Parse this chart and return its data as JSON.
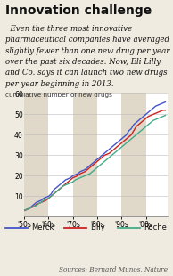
{
  "title": "Innovation challenge",
  "body_lines": [
    "  Even the three most innovative",
    "pharmaceutical companies have averaged",
    "slightly fewer than one new drug per year",
    "over the past six decades. Now, Eli Lilly",
    "and Co. says it can launch two new drugs",
    "per year beginning in 2013."
  ],
  "ylabel": "cumulative number of new drugs",
  "source": "Sources: Bernard Munos, Nature",
  "ylim": [
    0,
    60
  ],
  "yticks": [
    10,
    20,
    30,
    40,
    50,
    60
  ],
  "xtick_labels": [
    "'50s",
    "'60s",
    "'70s",
    "'80s",
    "'90s",
    "'00s"
  ],
  "bg_color": "#f0ebe0",
  "plot_bg": "#ffffff",
  "stripe_color": "#e0d8c8",
  "years": [
    1950,
    1951,
    1952,
    1953,
    1954,
    1955,
    1956,
    1957,
    1958,
    1959,
    1960,
    1961,
    1962,
    1963,
    1964,
    1965,
    1966,
    1967,
    1968,
    1969,
    1970,
    1971,
    1972,
    1973,
    1974,
    1975,
    1976,
    1977,
    1978,
    1979,
    1980,
    1981,
    1982,
    1983,
    1984,
    1985,
    1986,
    1987,
    1988,
    1989,
    1990,
    1991,
    1992,
    1993,
    1994,
    1995,
    1996,
    1997,
    1998,
    1999,
    2000,
    2001,
    2002,
    2003,
    2004,
    2005,
    2006,
    2007,
    2008
  ],
  "merck": [
    3,
    3.5,
    4,
    5,
    6,
    7,
    7.5,
    8,
    9,
    9.5,
    10,
    11,
    13,
    14,
    15,
    16,
    17,
    18,
    18.5,
    19,
    20,
    20.5,
    21,
    22,
    22.5,
    23,
    24,
    25,
    26,
    27,
    28,
    29,
    30,
    31,
    32,
    33,
    34,
    35,
    36,
    37,
    38,
    39,
    40,
    42,
    43,
    45,
    46,
    47,
    48,
    49,
    50,
    51,
    52,
    53,
    54,
    54.5,
    55,
    55.5,
    56
  ],
  "lilly": [
    3,
    3.5,
    4,
    4.5,
    5,
    6,
    6.5,
    7,
    7.5,
    8,
    9,
    10,
    11,
    12,
    13,
    14,
    15,
    16,
    17,
    18,
    19,
    19.5,
    20,
    21,
    21.5,
    22,
    23,
    24,
    25,
    26,
    27,
    28,
    29,
    30,
    30.5,
    31,
    32,
    33,
    34,
    35,
    36,
    37,
    38,
    39,
    40,
    42,
    44,
    45,
    46,
    47,
    48,
    49,
    49.5,
    50,
    50.5,
    51,
    51.5,
    52,
    52
  ],
  "roche": [
    3,
    3.5,
    4,
    4.5,
    5,
    5.5,
    6.5,
    7,
    8,
    8.5,
    9,
    10,
    11,
    12,
    13,
    14,
    15,
    15.5,
    16,
    16.5,
    17,
    18,
    18.5,
    19,
    19.5,
    20,
    20.5,
    21,
    22,
    23,
    24,
    25,
    26,
    27,
    28,
    29,
    30,
    31,
    32,
    33,
    34,
    35,
    36,
    37,
    38,
    39,
    40,
    41,
    42,
    43,
    44,
    45,
    46,
    47,
    47.5,
    48,
    48.5,
    49,
    49.5
  ],
  "legend": [
    {
      "label": "Merck",
      "color": "#4455cc"
    },
    {
      "label": "Lilly",
      "color": "#cc2222"
    },
    {
      "label": "Roche",
      "color": "#44aa88"
    }
  ],
  "title_fontsize": 10,
  "body_fontsize": 6.2,
  "axis_fontsize": 5.5,
  "legend_fontsize": 6.0,
  "source_fontsize": 5.2
}
